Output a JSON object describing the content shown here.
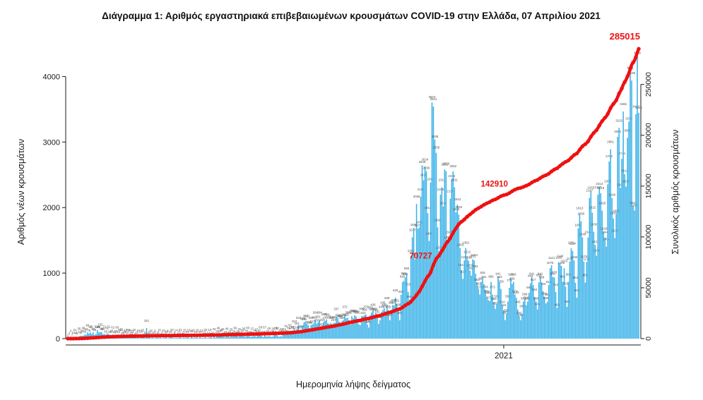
{
  "chart_data": {
    "type": "bar",
    "title": "Διάγραμμα 1: Αριθμός εργαστηριακά επιβεβαιωμένων κρουσμάτων COVID-19 στην Ελλάδα, 07 Απριλίου 2021",
    "xlabel": "Ημερομηνία λήψης δείγματος",
    "ylabel_left": "Αριθμός νέων κρουσμάτων",
    "ylabel_right": "Συνολικός αριθμός κρουσμάτων",
    "left_axis": {
      "ticks": [
        0,
        1000,
        2000,
        3000,
        4000
      ],
      "max": 4500
    },
    "right_axis": {
      "ticks": [
        0,
        50000,
        100000,
        150000,
        200000,
        250000
      ],
      "max": 290000
    },
    "year_tick": {
      "label": "2021",
      "day_index": 310
    },
    "series": [
      {
        "name": "daily-new-cases",
        "type": "bar"
      },
      {
        "name": "cumulative-total",
        "type": "line"
      }
    ],
    "daily_new_cases": [
      1,
      2,
      4,
      7,
      10,
      21,
      31,
      17,
      35,
      45,
      40,
      46,
      60,
      62,
      94,
      78,
      95,
      71,
      97,
      56,
      71,
      129,
      95,
      102,
      99,
      68,
      71,
      60,
      82,
      71,
      56,
      40,
      61,
      46,
      33,
      60,
      52,
      56,
      25,
      30,
      28,
      16,
      45,
      56,
      10,
      33,
      26,
      19,
      15,
      12,
      10,
      6,
      25,
      15,
      12,
      10,
      161,
      24,
      18,
      12,
      15,
      10,
      8,
      16,
      11,
      15,
      12,
      6,
      10,
      15,
      20,
      8,
      12,
      19,
      23,
      11,
      9,
      14,
      10,
      15,
      21,
      10,
      12,
      15,
      10,
      22,
      15,
      10,
      32,
      15,
      12,
      19,
      15,
      10,
      21,
      12,
      10,
      15,
      20,
      8,
      12,
      19,
      23,
      11,
      32,
      14,
      25,
      46,
      57,
      43,
      34,
      28,
      19,
      40,
      31,
      22,
      29,
      33,
      28,
      50,
      43,
      28,
      31,
      39,
      42,
      35,
      28,
      36,
      52,
      41,
      24,
      37,
      33,
      45,
      27,
      50,
      42,
      58,
      39,
      24,
      57,
      37,
      30,
      45,
      31,
      28,
      36,
      61,
      75,
      50,
      27,
      39,
      32,
      65,
      58,
      78,
      65,
      75,
      92,
      121,
      97,
      153,
      124,
      151,
      203,
      126,
      108,
      196,
      248,
      262,
      230,
      204,
      159,
      207,
      217,
      240,
      284,
      230,
      251,
      284,
      169,
      204,
      259,
      270,
      292,
      233,
      157,
      238,
      217,
      237,
      241,
      337,
      312,
      258,
      239,
      268,
      286,
      372,
      310,
      320,
      279,
      213,
      344,
      310,
      358,
      339,
      286,
      218,
      207,
      346,
      342,
      358,
      370,
      218,
      170,
      358,
      399,
      436,
      342,
      391,
      331,
      226,
      280,
      406,
      435,
      468,
      417,
      508,
      435,
      280,
      438,
      512,
      508,
      626,
      531,
      438,
      280,
      667,
      865,
      882,
      935,
      990,
      715,
      594,
      1259,
      1547,
      1690,
      1211,
      2056,
      1678,
      1698,
      2166,
      2646,
      2418,
      2624,
      2556,
      1914,
      1489,
      2383,
      3604,
      3541,
      3038,
      2835,
      1698,
      1338,
      2198,
      2311,
      2018,
      2581,
      2556,
      1498,
      1547,
      2135,
      2435,
      2552,
      2311,
      1926,
      2044,
      1893,
      1383,
      1044,
      912,
      1194,
      1382,
      1212,
      1190,
      1038,
      961,
      1211,
      1194,
      992,
      853,
      761,
      673,
      867,
      925,
      831,
      744,
      639,
      589,
      575,
      866,
      673,
      558,
      455,
      531,
      941,
      862,
      758,
      510,
      433,
      283,
      380,
      566,
      775,
      929,
      836,
      866,
      673,
      623,
      445,
      342,
      282,
      380,
      566,
      599,
      510,
      566,
      699,
      844,
      941,
      817,
      634,
      566,
      445,
      858,
      941,
      858,
      723,
      641,
      536,
      561,
      816,
      1076,
      1121,
      941,
      933,
      712,
      468,
      1155,
      1148,
      1109,
      866,
      1073,
      793,
      484,
      866,
      1176,
      1381,
      1337,
      1193,
      853,
      623,
      1684,
      1913,
      1790,
      1546,
      1176,
      855,
      1170,
      1544,
      2147,
      2255,
      1922,
      1630,
      1431,
      1266,
      2197,
      2313,
      2219,
      1955,
      1629,
      1544,
      1404,
      2353,
      2702,
      2891,
      2146,
      1834,
      1535,
      1899,
      3080,
      3215,
      2301,
      2744,
      3465,
      2512,
      2318,
      3065,
      3313,
      4051,
      3938,
      2023,
      1955,
      3427,
      4309,
      3445
    ],
    "cumulative_total_final": 285015,
    "cumulative_annotations": [
      70727,
      142910,
      285015
    ],
    "colors": {
      "bar": "#3ab2e8",
      "line": "#ee1111",
      "axis": "#1a1a1a",
      "title": "#111111",
      "bar_label": "#4d4d4d"
    }
  }
}
